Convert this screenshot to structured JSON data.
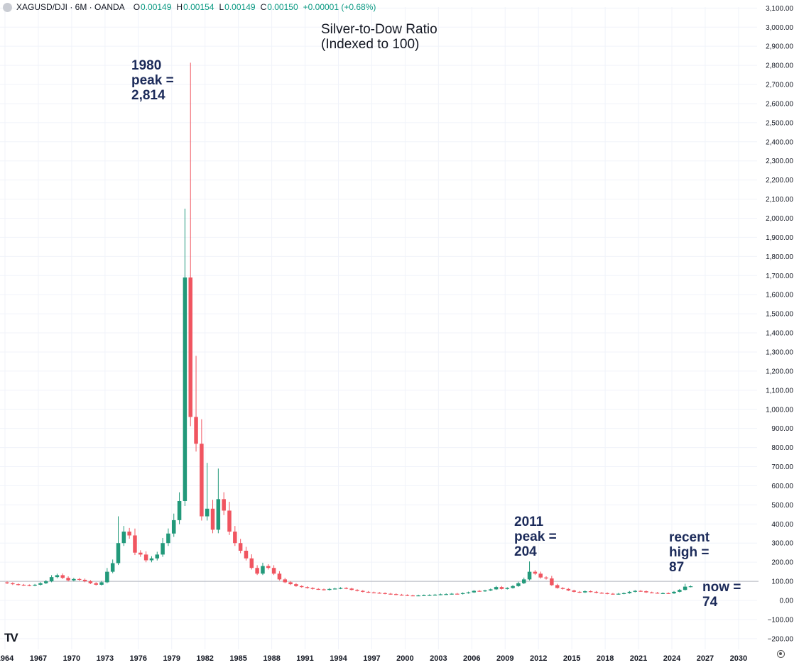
{
  "header": {
    "symbol": "XAGUSD/DJI · 6M · OANDA",
    "open_label": "O",
    "open": "0.00149",
    "high_label": "H",
    "high": "0.00154",
    "low_label": "L",
    "low": "0.00149",
    "close_label": "C",
    "close": "0.00150",
    "change": "+0.00001 (+0.68%)"
  },
  "colors": {
    "up": "#22997a",
    "down": "#f05560",
    "grid": "#f0f3fa",
    "annotation": "#1c2b5a"
  },
  "annotations": {
    "peak_1980": [
      "1980",
      "peak =",
      "2,814"
    ],
    "peak_2011": [
      "2011",
      "peak =",
      "204"
    ],
    "recent_high": [
      "recent",
      "high =",
      "87"
    ],
    "now": [
      "now =",
      "74"
    ]
  },
  "chart_data": {
    "type": "candlestick",
    "title": "Silver-to-Dow Ratio\n(Indexed to 100)",
    "title_lines": [
      "Silver-to-Dow Ratio",
      "(Indexed to 100)"
    ],
    "interval": "6M",
    "ylim": [
      -220,
      3120
    ],
    "reference_line": 100,
    "y_ticks": [
      -200,
      -100,
      0,
      100,
      200,
      300,
      400,
      500,
      600,
      700,
      800,
      900,
      1000,
      1100,
      1200,
      1300,
      1400,
      1500,
      1600,
      1700,
      1800,
      1900,
      2000,
      2100,
      2200,
      2300,
      2400,
      2500,
      2600,
      2700,
      2800,
      2900,
      3000,
      3100
    ],
    "y_tick_labels": [
      "−200.00",
      "−100.00",
      "0.00",
      "100.00",
      "200.00",
      "300.00",
      "400.00",
      "500.00",
      "600.00",
      "700.00",
      "800.00",
      "900.00",
      "1,000.00",
      "1,100.00",
      "1,200.00",
      "1,300.00",
      "1,400.00",
      "1,500.00",
      "1,600.00",
      "1,700.00",
      "1,800.00",
      "1,900.00",
      "2,000.00",
      "2,100.00",
      "2,200.00",
      "2,300.00",
      "2,400.00",
      "2,500.00",
      "2,600.00",
      "2,700.00",
      "2,800.00",
      "2,900.00",
      "3,000.00",
      "3,100.00"
    ],
    "x_range": [
      1964,
      2032
    ],
    "x_ticks": [
      1964,
      1967,
      1970,
      1973,
      1976,
      1979,
      1982,
      1985,
      1988,
      1991,
      1994,
      1997,
      2000,
      2003,
      2006,
      2009,
      2012,
      2015,
      2018,
      2021,
      2024,
      2027,
      2030
    ],
    "x_tick_labels": [
      "1964",
      "1967",
      "1970",
      "1973",
      "1976",
      "1979",
      "1982",
      "1985",
      "1988",
      "1991",
      "1994",
      "1997",
      "2000",
      "2003",
      "2006",
      "2009",
      "2012",
      "2015",
      "2018",
      "2021",
      "2024",
      "2027",
      "2030"
    ],
    "close_path": [
      [
        1964.0,
        90
      ],
      [
        1964.5,
        85
      ],
      [
        1965.0,
        82
      ],
      [
        1965.5,
        80
      ],
      [
        1966.0,
        78
      ],
      [
        1966.5,
        82
      ],
      [
        1967.0,
        90
      ],
      [
        1967.5,
        100
      ],
      [
        1968.0,
        122
      ],
      [
        1968.5,
        132
      ],
      [
        1969.0,
        118
      ],
      [
        1969.5,
        105
      ],
      [
        1970.0,
        112
      ],
      [
        1970.5,
        108
      ],
      [
        1971.0,
        100
      ],
      [
        1971.5,
        90
      ],
      [
        1972.0,
        82
      ],
      [
        1972.5,
        95
      ],
      [
        1973.0,
        150
      ],
      [
        1973.5,
        195
      ],
      [
        1974.0,
        300
      ],
      [
        1974.5,
        360
      ],
      [
        1975.0,
        340
      ],
      [
        1975.5,
        250
      ],
      [
        1976.0,
        240
      ],
      [
        1976.5,
        210
      ],
      [
        1977.0,
        220
      ],
      [
        1977.5,
        240
      ],
      [
        1978.0,
        300
      ],
      [
        1978.5,
        350
      ],
      [
        1979.0,
        420
      ],
      [
        1979.5,
        520
      ],
      [
        1980.0,
        1690
      ],
      [
        1980.5,
        960
      ],
      [
        1981.0,
        820
      ],
      [
        1981.5,
        440
      ],
      [
        1982.0,
        480
      ],
      [
        1982.5,
        370
      ],
      [
        1983.0,
        530
      ],
      [
        1983.5,
        470
      ],
      [
        1984.0,
        360
      ],
      [
        1984.5,
        300
      ],
      [
        1985.0,
        260
      ],
      [
        1985.5,
        220
      ],
      [
        1986.0,
        170
      ],
      [
        1986.5,
        140
      ],
      [
        1987.0,
        180
      ],
      [
        1987.5,
        170
      ],
      [
        1988.0,
        140
      ],
      [
        1988.5,
        110
      ],
      [
        1989.0,
        95
      ],
      [
        1989.5,
        85
      ],
      [
        1990.0,
        75
      ],
      [
        1990.5,
        70
      ],
      [
        1991.0,
        65
      ],
      [
        1991.5,
        60
      ],
      [
        1992.0,
        58
      ],
      [
        1992.5,
        55
      ],
      [
        1993.0,
        60
      ],
      [
        1993.5,
        62
      ],
      [
        1994.0,
        65
      ],
      [
        1994.5,
        62
      ],
      [
        1995.0,
        55
      ],
      [
        1995.5,
        50
      ],
      [
        1996.0,
        45
      ],
      [
        1996.5,
        42
      ],
      [
        1997.0,
        40
      ],
      [
        1997.5,
        38
      ],
      [
        1998.0,
        35
      ],
      [
        1998.5,
        33
      ],
      [
        1999.0,
        30
      ],
      [
        1999.5,
        28
      ],
      [
        2000.0,
        26
      ],
      [
        2000.5,
        25
      ],
      [
        2001.0,
        26
      ],
      [
        2001.5,
        27
      ],
      [
        2002.0,
        28
      ],
      [
        2002.5,
        30
      ],
      [
        2003.0,
        32
      ],
      [
        2003.5,
        33
      ],
      [
        2004.0,
        35
      ],
      [
        2004.5,
        34
      ],
      [
        2005.0,
        38
      ],
      [
        2005.5,
        42
      ],
      [
        2006.0,
        50
      ],
      [
        2006.5,
        48
      ],
      [
        2007.0,
        52
      ],
      [
        2007.5,
        58
      ],
      [
        2008.0,
        70
      ],
      [
        2008.5,
        60
      ],
      [
        2009.0,
        65
      ],
      [
        2009.5,
        75
      ],
      [
        2010.0,
        90
      ],
      [
        2010.5,
        110
      ],
      [
        2011.0,
        150
      ],
      [
        2011.5,
        140
      ],
      [
        2012.0,
        120
      ],
      [
        2012.5,
        115
      ],
      [
        2013.0,
        80
      ],
      [
        2013.5,
        65
      ],
      [
        2014.0,
        60
      ],
      [
        2014.5,
        52
      ],
      [
        2015.0,
        45
      ],
      [
        2015.5,
        42
      ],
      [
        2016.0,
        48
      ],
      [
        2016.5,
        45
      ],
      [
        2017.0,
        40
      ],
      [
        2017.5,
        38
      ],
      [
        2018.0,
        35
      ],
      [
        2018.5,
        33
      ],
      [
        2019.0,
        35
      ],
      [
        2019.5,
        38
      ],
      [
        2020.0,
        45
      ],
      [
        2020.5,
        50
      ],
      [
        2021.0,
        48
      ],
      [
        2021.5,
        42
      ],
      [
        2022.0,
        40
      ],
      [
        2022.5,
        38
      ],
      [
        2023.0,
        38
      ],
      [
        2023.5,
        37
      ],
      [
        2024.0,
        45
      ],
      [
        2024.5,
        55
      ],
      [
        2025.0,
        72
      ],
      [
        2025.5,
        74
      ]
    ],
    "spikes": [
      {
        "x": 1980.5,
        "high": 2814
      },
      {
        "x": 1981.0,
        "high": 1280
      },
      {
        "x": 1982.0,
        "high": 720
      },
      {
        "x": 1983.0,
        "high": 690
      },
      {
        "x": 1974.0,
        "high": 440
      },
      {
        "x": 2011.0,
        "high": 204
      },
      {
        "x": 2025.0,
        "high": 87
      }
    ]
  }
}
